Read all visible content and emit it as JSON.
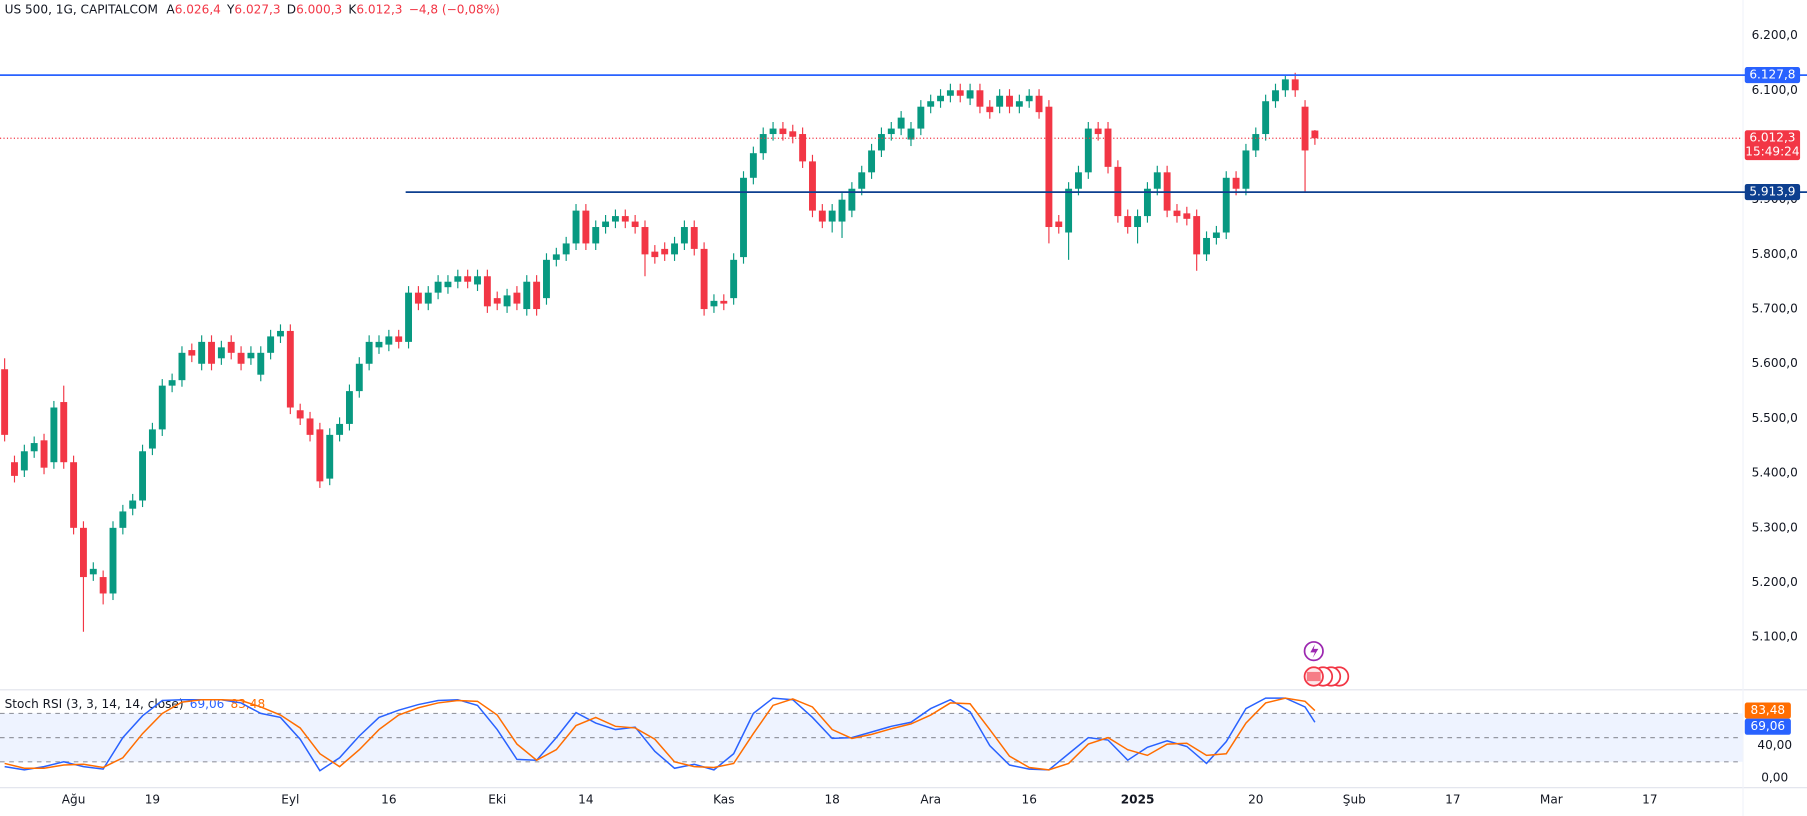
{
  "legend": {
    "symbol": "US 500, 1G, CAPITALCOM",
    "open_key": "A",
    "open": "6.026,4",
    "high_key": "Y",
    "high": "6.027,3",
    "low_key": "D",
    "low": "6.000,3",
    "close_key": "K",
    "close": "6.012,3",
    "change": "−4,8 (−0,08%)"
  },
  "chart_data": [
    {
      "type": "candlestick",
      "open": [
        5590,
        5420,
        5405,
        5440,
        5460,
        5420,
        5530,
        5420,
        5300,
        5215,
        5210,
        5180,
        5300,
        5335,
        5350,
        5445,
        5480,
        5560,
        5570,
        5625,
        5600,
        5640,
        5610,
        5640,
        5620,
        5610,
        5580,
        5620,
        5650,
        5660,
        5515,
        5500,
        5480,
        5390,
        5470,
        5490,
        5550,
        5600,
        5630,
        5635,
        5650,
        5640,
        5730,
        5710,
        5730,
        5740,
        5750,
        5760,
        5745,
        5760,
        5720,
        5705,
        5730,
        5700,
        5750,
        5720,
        5790,
        5800,
        5820,
        5880,
        5820,
        5850,
        5860,
        5870,
        5860,
        5850,
        5805,
        5810,
        5800,
        5820,
        5850,
        5810,
        5705,
        5715,
        5720,
        5795,
        5940,
        5985,
        6020,
        6030,
        6025,
        6020,
        5970,
        5880,
        5860,
        5860,
        5880,
        5920,
        5950,
        5990,
        6020,
        6030,
        6010,
        6030,
        6070,
        6080,
        6090,
        6100,
        6085,
        6100,
        6070,
        6070,
        6090,
        6070,
        6080,
        6090,
        6070,
        5860,
        5840,
        5920,
        5950,
        6030,
        6030,
        5960,
        5870,
        5850,
        5870,
        5920,
        5950,
        5880,
        5875,
        5870,
        5800,
        5830,
        5840,
        5940,
        5920,
        5990,
        6020,
        6080,
        6100,
        6120,
        6070,
        6026.4
      ],
      "high": [
        5610,
        5432,
        5452,
        5467,
        5472,
        5532,
        5560,
        5432,
        5312,
        5237,
        5222,
        5312,
        5342,
        5362,
        5452,
        5492,
        5572,
        5582,
        5632,
        5637,
        5652,
        5652,
        5642,
        5652,
        5632,
        5632,
        5632,
        5662,
        5672,
        5672,
        5527,
        5512,
        5492,
        5482,
        5502,
        5562,
        5612,
        5652,
        5652,
        5662,
        5662,
        5742,
        5742,
        5742,
        5762,
        5762,
        5772,
        5772,
        5772,
        5772,
        5732,
        5737,
        5742,
        5762,
        5762,
        5802,
        5812,
        5832,
        5892,
        5892,
        5862,
        5872,
        5882,
        5882,
        5872,
        5862,
        5817,
        5822,
        5832,
        5862,
        5862,
        5822,
        5727,
        5727,
        5802,
        5952,
        5997,
        6032,
        6042,
        6042,
        6037,
        6032,
        5982,
        5892,
        5892,
        5912,
        5932,
        5962,
        6002,
        6032,
        6042,
        6062,
        6042,
        6082,
        6092,
        6102,
        6112,
        6112,
        6112,
        6112,
        6082,
        6102,
        6102,
        6092,
        6102,
        6102,
        6082,
        5872,
        5932,
        5962,
        6042,
        6042,
        6042,
        5972,
        5882,
        5882,
        5932,
        5962,
        5962,
        5892,
        5887,
        5882,
        5842,
        5852,
        5952,
        5952,
        6002,
        6032,
        6092,
        6112,
        6128,
        6132,
        6082,
        6027.3
      ],
      "low": [
        5458,
        5383,
        5393,
        5428,
        5398,
        5408,
        5408,
        5288,
        5110,
        5203,
        5160,
        5168,
        5288,
        5323,
        5338,
        5433,
        5468,
        5548,
        5558,
        5603,
        5588,
        5588,
        5598,
        5608,
        5588,
        5598,
        5568,
        5608,
        5638,
        5508,
        5488,
        5458,
        5373,
        5378,
        5458,
        5478,
        5538,
        5588,
        5618,
        5623,
        5628,
        5628,
        5698,
        5698,
        5718,
        5728,
        5738,
        5738,
        5733,
        5693,
        5698,
        5693,
        5698,
        5688,
        5688,
        5708,
        5778,
        5788,
        5808,
        5808,
        5808,
        5838,
        5848,
        5848,
        5838,
        5760,
        5783,
        5788,
        5788,
        5808,
        5798,
        5688,
        5693,
        5698,
        5708,
        5783,
        5928,
        5973,
        6008,
        6008,
        6003,
        5958,
        5868,
        5848,
        5840,
        5830,
        5868,
        5908,
        5938,
        5978,
        6008,
        6018,
        5998,
        6018,
        6058,
        6068,
        6078,
        6078,
        6073,
        6058,
        6048,
        6058,
        6058,
        6058,
        6068,
        6048,
        5820,
        5838,
        5790,
        5908,
        5938,
        6008,
        5948,
        5858,
        5838,
        5820,
        5858,
        5908,
        5868,
        5858,
        5853,
        5770,
        5788,
        5818,
        5828,
        5908,
        5908,
        5978,
        6008,
        6068,
        6088,
        6088,
        5913,
        6000.3
      ],
      "close": [
        5470,
        5395,
        5440,
        5455,
        5410,
        5520,
        5420,
        5300,
        5210,
        5225,
        5180,
        5300,
        5330,
        5350,
        5440,
        5480,
        5560,
        5570,
        5620,
        5615,
        5640,
        5600,
        5630,
        5620,
        5600,
        5620,
        5620,
        5650,
        5660,
        5520,
        5500,
        5470,
        5385,
        5470,
        5490,
        5550,
        5600,
        5640,
        5640,
        5650,
        5640,
        5730,
        5710,
        5730,
        5750,
        5750,
        5760,
        5750,
        5760,
        5705,
        5710,
        5725,
        5710,
        5750,
        5700,
        5790,
        5800,
        5820,
        5880,
        5820,
        5850,
        5860,
        5870,
        5860,
        5850,
        5800,
        5795,
        5800,
        5820,
        5850,
        5810,
        5700,
        5715,
        5710,
        5790,
        5940,
        5985,
        6020,
        6030,
        6020,
        6015,
        5970,
        5880,
        5860,
        5880,
        5900,
        5920,
        5950,
        5990,
        6020,
        6030,
        6050,
        6030,
        6070,
        6080,
        6090,
        6100,
        6090,
        6100,
        6070,
        6060,
        6090,
        6070,
        6080,
        6090,
        6060,
        5850,
        5850,
        5920,
        5950,
        6030,
        6020,
        5960,
        5870,
        5850,
        5870,
        5920,
        5950,
        5880,
        5870,
        5865,
        5800,
        5830,
        5840,
        5940,
        5920,
        5990,
        6020,
        6080,
        6100,
        6120,
        6100,
        5990,
        6012.3
      ],
      "up_color": "#089981",
      "down_color": "#f23645",
      "xlim": [
        -0.47,
        176.4
      ],
      "xticks": [
        {
          "value": 7,
          "label": "Ağu"
        },
        {
          "value": 15,
          "label": "19"
        },
        {
          "value": 29,
          "label": "Eyl"
        },
        {
          "value": 39,
          "label": "16"
        },
        {
          "value": 50,
          "label": "Eki"
        },
        {
          "value": 59,
          "label": "14"
        },
        {
          "value": 73,
          "label": "Kas"
        },
        {
          "value": 84,
          "label": "18"
        },
        {
          "value": 94,
          "label": "Ara"
        },
        {
          "value": 104,
          "label": "16"
        },
        {
          "value": 115,
          "label": "2025"
        },
        {
          "value": 127,
          "label": "20"
        },
        {
          "value": 137,
          "label": "Şub"
        },
        {
          "value": 147,
          "label": "17"
        },
        {
          "value": 157,
          "label": "Mar"
        },
        {
          "value": 167,
          "label": "17"
        }
      ],
      "ylim": [
        5005,
        6265
      ],
      "yticks": [
        {
          "value": 6200,
          "label": "6.200,0"
        },
        {
          "value": 6100,
          "label": "6.100,0"
        },
        {
          "value": 6000,
          "label": "6.000,0"
        },
        {
          "value": 5900,
          "label": "5.900,0"
        },
        {
          "value": 5800,
          "label": "5.800,0"
        },
        {
          "value": 5700,
          "label": "5.700,0"
        },
        {
          "value": 5600,
          "label": "5.600,0"
        },
        {
          "value": 5500,
          "label": "5.500,0"
        },
        {
          "value": 5400,
          "label": "5.400,0"
        },
        {
          "value": 5300,
          "label": "5.300,0"
        },
        {
          "value": 5200,
          "label": "5.200,0"
        },
        {
          "value": 5100,
          "label": "5.100,0"
        }
      ],
      "levels": [
        {
          "value": 6127.8,
          "label": "6.127,8",
          "color": "#2962ff"
        },
        {
          "value": 5913.9,
          "label": "5.913,9",
          "color": "#0d3f8f"
        }
      ],
      "last_price": {
        "value": 6012.3,
        "label": "6.012,3",
        "countdown": "15:49:24",
        "color": "#f23645"
      }
    },
    {
      "type": "line",
      "title": "Stoch RSI (3, 3, 14, 14, close)",
      "x": [
        0,
        2,
        4,
        6,
        8,
        10,
        12,
        14,
        16,
        18,
        20,
        22,
        24,
        26,
        28,
        30,
        32,
        34,
        36,
        38,
        40,
        42,
        44,
        46,
        48,
        50,
        52,
        54,
        56,
        58,
        60,
        62,
        64,
        66,
        68,
        70,
        72,
        74,
        76,
        78,
        80,
        82,
        84,
        86,
        88,
        90,
        92,
        94,
        96,
        98,
        100,
        102,
        104,
        106,
        108,
        110,
        112,
        114,
        116,
        118,
        120,
        122,
        124,
        126,
        128,
        130,
        132,
        133
      ],
      "series": [
        {
          "color": "#2962ff",
          "last_label": "69,06",
          "values": [
            14,
            10,
            14,
            20,
            14,
            11,
            50,
            77,
            96,
            97,
            97,
            97,
            93,
            80,
            75,
            48,
            9,
            25,
            52,
            75,
            84,
            91,
            96,
            97,
            90,
            60,
            23,
            22,
            50,
            81,
            68,
            60,
            63,
            33,
            12,
            17,
            10,
            30,
            80,
            99,
            97,
            75,
            49,
            50,
            57,
            64,
            69,
            86,
            97,
            82,
            40,
            16,
            11,
            10,
            30,
            50,
            47,
            22,
            38,
            46,
            39,
            18,
            45,
            86,
            99,
            99,
            88,
            69.06
          ]
        },
        {
          "color": "#ff6d00",
          "last_label": "83,48",
          "values": [
            18,
            12,
            12,
            16,
            17,
            13,
            25,
            55,
            80,
            94,
            97,
            97,
            96,
            88,
            78,
            62,
            30,
            14,
            35,
            60,
            78,
            87,
            93,
            96,
            95,
            78,
            42,
            22,
            35,
            65,
            75,
            64,
            62,
            48,
            20,
            14,
            13,
            18,
            55,
            90,
            98,
            88,
            60,
            49,
            54,
            61,
            67,
            78,
            93,
            92,
            60,
            27,
            13,
            10,
            18,
            42,
            50,
            35,
            28,
            42,
            43,
            28,
            30,
            68,
            93,
            99,
            95,
            83.48
          ]
        }
      ],
      "ylim": [
        -11.4,
        108.6
      ],
      "yticks": [
        {
          "value": 40,
          "label": "40,00"
        },
        {
          "value": 0,
          "label": "0,00"
        }
      ],
      "hlines": [
        80,
        50,
        20
      ]
    }
  ]
}
